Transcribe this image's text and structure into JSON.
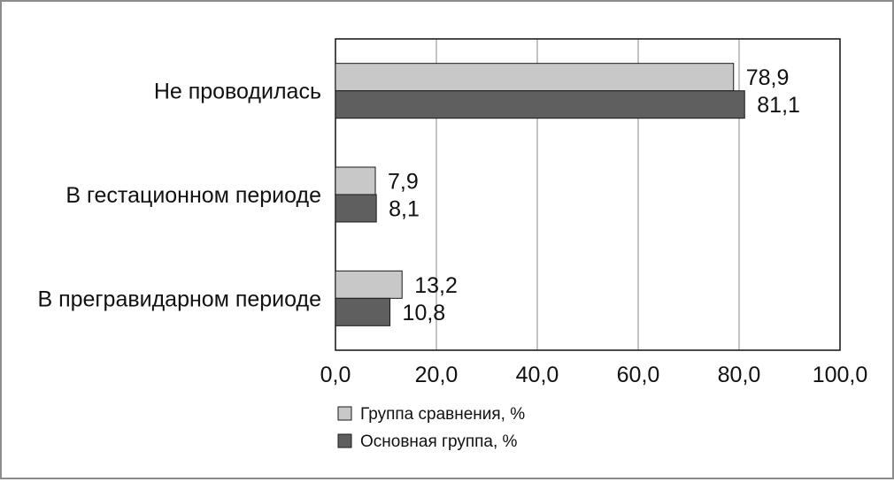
{
  "chart_data": {
    "type": "bar",
    "orientation": "horizontal",
    "categories": [
      "Не проводилась",
      "В гестационном периоде",
      "В прегравидарном периоде"
    ],
    "series": [
      {
        "name": "Группа сравнения, %",
        "values": [
          78.9,
          7.9,
          13.2
        ],
        "value_labels": [
          "78,9",
          "7,9",
          "13,2"
        ],
        "color": "#c8c8c8"
      },
      {
        "name": "Основная группа, %",
        "values": [
          81.1,
          8.1,
          10.8
        ],
        "value_labels": [
          "81,1",
          "8,1",
          "10,8"
        ],
        "color": "#5f5f5f"
      }
    ],
    "xlim": [
      0,
      100
    ],
    "ticks": [
      0,
      20,
      40,
      60,
      80,
      100
    ],
    "tick_labels": [
      "0,0",
      "20,0",
      "40,0",
      "60,0",
      "80,0",
      "100,0"
    ],
    "grid": true,
    "legend_position": "bottom-left"
  }
}
